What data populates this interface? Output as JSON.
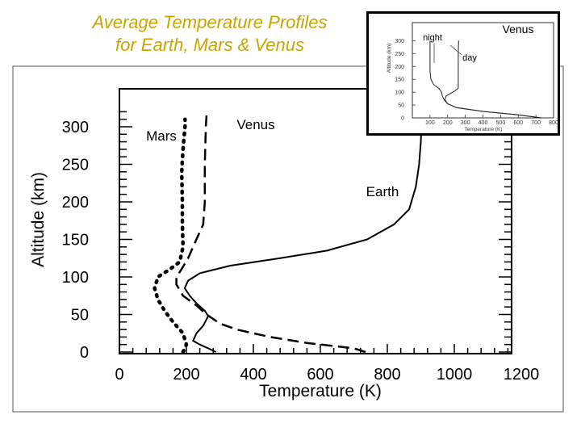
{
  "slide": {
    "title_line1": "Average Temperature Profiles",
    "title_line2": "for Earth, Mars & Venus",
    "title_color": "#c9a400"
  },
  "chart_data": [
    {
      "type": "line",
      "xlabel": "Temperature (K)",
      "ylabel": "Altitude (km)",
      "xlim": [
        0,
        1200
      ],
      "ylim": [
        0,
        320
      ],
      "x_ticks": [
        "0",
        "200",
        "400",
        "600",
        "800",
        "1000",
        "1200"
      ],
      "y_ticks": [
        "0",
        "50",
        "100",
        "150",
        "200",
        "250",
        "300"
      ],
      "annotations": [
        "Mars",
        "Venus",
        "Earth"
      ],
      "series": [
        {
          "name": "Mars",
          "style": "dotted",
          "points": [
            [
              190,
              0
            ],
            [
              200,
              10
            ],
            [
              190,
              25
            ],
            [
              160,
              40
            ],
            [
              135,
              55
            ],
            [
              115,
              70
            ],
            [
              105,
              85
            ],
            [
              115,
              100
            ],
            [
              150,
              110
            ],
            [
              180,
              120
            ],
            [
              190,
              140
            ],
            [
              188,
              170
            ],
            [
              188,
              200
            ],
            [
              186,
              240
            ],
            [
              190,
              270
            ],
            [
              196,
              300
            ],
            [
              196,
              310
            ]
          ]
        },
        {
          "name": "Venus",
          "style": "dashed",
          "points": [
            [
              735,
              0
            ],
            [
              700,
              5
            ],
            [
              560,
              12
            ],
            [
              450,
              20
            ],
            [
              350,
              30
            ],
            [
              300,
              38
            ],
            [
              260,
              50
            ],
            [
              230,
              62
            ],
            [
              190,
              75
            ],
            [
              170,
              90
            ],
            [
              170,
              100
            ],
            [
              185,
              110
            ],
            [
              205,
              125
            ],
            [
              230,
              150
            ],
            [
              250,
              170
            ],
            [
              255,
              200
            ],
            [
              255,
              250
            ],
            [
              258,
              300
            ],
            [
              260,
              315
            ]
          ]
        },
        {
          "name": "Earth",
          "style": "solid",
          "points": [
            [
              288,
              0
            ],
            [
              265,
              5
            ],
            [
              240,
              10
            ],
            [
              220,
              15
            ],
            [
              230,
              25
            ],
            [
              250,
              35
            ],
            [
              265,
              48
            ],
            [
              255,
              55
            ],
            [
              230,
              65
            ],
            [
              210,
              75
            ],
            [
              195,
              85
            ],
            [
              205,
              95
            ],
            [
              240,
              105
            ],
            [
              330,
              115
            ],
            [
              480,
              125
            ],
            [
              620,
              135
            ],
            [
              740,
              150
            ],
            [
              820,
              170
            ],
            [
              865,
              190
            ],
            [
              885,
              220
            ],
            [
              895,
              250
            ],
            [
              900,
              280
            ],
            [
              902,
              300
            ]
          ]
        }
      ]
    },
    {
      "type": "line",
      "title": "Venus",
      "xlabel": "Temperature (K)",
      "ylabel": "Altitude (km)",
      "xlim": [
        0,
        800
      ],
      "ylim": [
        0,
        320
      ],
      "x_ticks": [
        "100",
        "200",
        "300",
        "400",
        "500",
        "600",
        "700",
        "800"
      ],
      "y_ticks": [
        "0",
        "50",
        "100",
        "150",
        "200",
        "250",
        "300"
      ],
      "annotations": [
        "night",
        "day"
      ],
      "series": [
        {
          "name": "night",
          "points": [
            [
              730,
              0
            ],
            [
              600,
              12
            ],
            [
              400,
              25
            ],
            [
              250,
              40
            ],
            [
              200,
              55
            ],
            [
              180,
              70
            ],
            [
              170,
              85
            ],
            [
              165,
              100
            ],
            [
              150,
              115
            ],
            [
              120,
              130
            ],
            [
              105,
              150
            ],
            [
              100,
              180
            ],
            [
              100,
              220
            ],
            [
              100,
              260
            ],
            [
              100,
              300
            ]
          ]
        },
        {
          "name": "day",
          "points": [
            [
              730,
              0
            ],
            [
              600,
              12
            ],
            [
              400,
              25
            ],
            [
              250,
              40
            ],
            [
              200,
              55
            ],
            [
              185,
              70
            ],
            [
              190,
              85
            ],
            [
              230,
              100
            ],
            [
              260,
              115
            ],
            [
              260,
              150
            ],
            [
              260,
              200
            ],
            [
              260,
              250
            ],
            [
              262,
              300
            ]
          ]
        }
      ]
    }
  ]
}
